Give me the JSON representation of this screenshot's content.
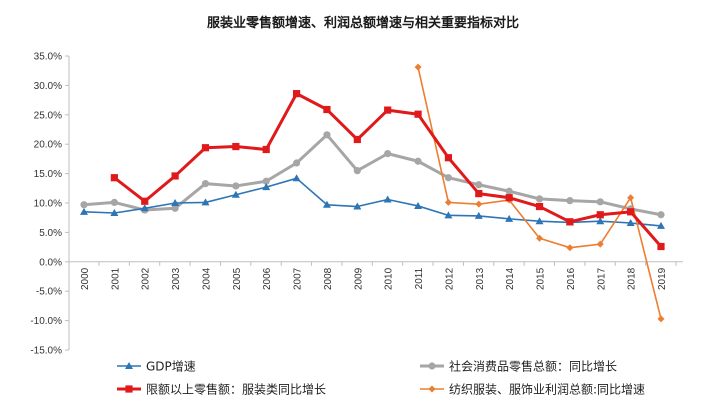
{
  "chart_data": {
    "type": "line",
    "title": "服装业零售额增速、利润总额增速与相关重要指标对比",
    "ylim": [
      -15,
      35
    ],
    "yticks": [
      -15,
      -10,
      -5,
      0,
      5,
      10,
      15,
      20,
      25,
      30,
      35
    ],
    "ytick_labels": [
      "-15.0%",
      "-10.0%",
      "-5.0%",
      "0.0%",
      "5.0%",
      "10.0%",
      "15.0%",
      "20.0%",
      "25.0%",
      "30.0%",
      "35.0%"
    ],
    "categories": [
      "2000",
      "2001",
      "2002",
      "2003",
      "2004",
      "2005",
      "2006",
      "2007",
      "2008",
      "2009",
      "2010",
      "2011",
      "2012",
      "2013",
      "2014",
      "2015",
      "2016",
      "2017",
      "2018",
      "2019"
    ],
    "grid": false,
    "legend_position": "bottom",
    "series": [
      {
        "name": "GDP增速",
        "color": "#2e75b6",
        "marker": "triangle",
        "values": [
          8.5,
          8.3,
          9.1,
          10.0,
          10.1,
          11.4,
          12.7,
          14.2,
          9.7,
          9.4,
          10.6,
          9.5,
          7.9,
          7.8,
          7.3,
          6.9,
          6.7,
          6.9,
          6.6,
          6.1
        ]
      },
      {
        "name": "社会消费品零售总额：同比增长",
        "color": "#a6a6a6",
        "marker": "circle",
        "values": [
          9.7,
          10.1,
          8.8,
          9.1,
          13.3,
          12.9,
          13.7,
          16.8,
          21.6,
          15.5,
          18.4,
          17.1,
          14.3,
          13.1,
          12.0,
          10.7,
          10.4,
          10.2,
          9.0,
          8.0
        ]
      },
      {
        "name": "限额以上零售额：服装类同比增长",
        "color": "#e0191b",
        "marker": "square",
        "values": [
          null,
          14.3,
          10.3,
          14.6,
          19.4,
          19.6,
          19.1,
          28.6,
          25.9,
          20.8,
          25.8,
          25.1,
          17.7,
          11.6,
          10.9,
          9.4,
          6.8,
          8.0,
          8.5,
          2.6
        ]
      },
      {
        "name": "纺织服装、服饰业利润总额:同比增速",
        "color": "#ed7d31",
        "marker": "diamond",
        "values": [
          null,
          null,
          null,
          null,
          null,
          null,
          null,
          null,
          null,
          null,
          null,
          33.1,
          10.1,
          9.8,
          10.5,
          4.0,
          2.4,
          3.0,
          10.9,
          -9.7
        ]
      }
    ]
  }
}
